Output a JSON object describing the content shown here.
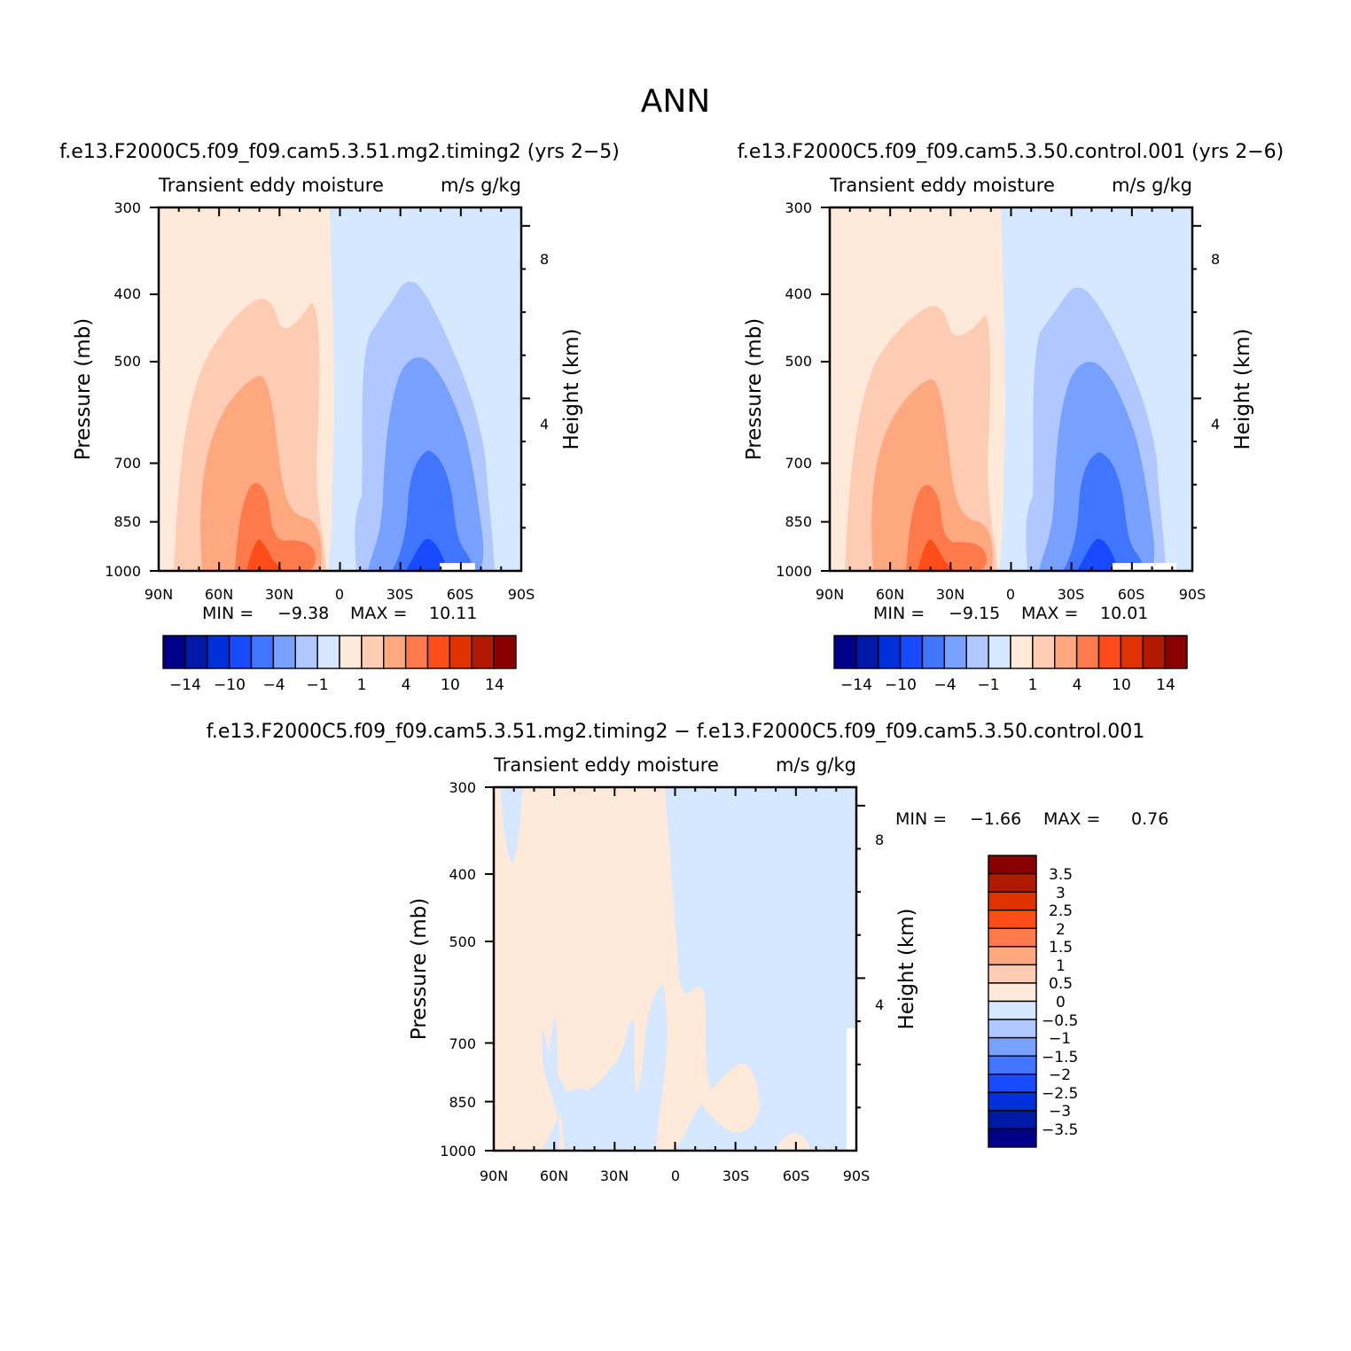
{
  "title": "ANN",
  "panels": [
    {
      "case_title": "f.e13.F2000C5.f09_f09.cam5.3.51.mg2.timing2 (yrs 2−5)",
      "plot_title": "Transient eddy moisture",
      "units": "m/s  g/kg",
      "ylabel": "Pressure (mb)",
      "ylabel_right": "Height (km)",
      "min_label": "MIN =",
      "min_value": "−9.38",
      "max_label": "MAX =",
      "max_value": "10.11"
    },
    {
      "case_title": "f.e13.F2000C5.f09_f09.cam5.3.50.control.001 (yrs 2−6)",
      "plot_title": "Transient eddy moisture",
      "units": "m/s  g/kg",
      "ylabel": "Pressure (mb)",
      "ylabel_right": "Height (km)",
      "min_label": "MIN =",
      "min_value": "−9.15",
      "max_label": "MAX =",
      "max_value": "10.01"
    },
    {
      "case_title": "f.e13.F2000C5.f09_f09.cam5.3.51.mg2.timing2 − f.e13.F2000C5.f09_f09.cam5.3.50.control.001",
      "plot_title": "Transient eddy moisture",
      "units": "m/s  g/kg",
      "ylabel": "Pressure (mb)",
      "ylabel_right": "Height (km)",
      "min_label": "MIN =",
      "min_value": "−1.66",
      "max_label": "MAX =",
      "max_value": "0.76"
    }
  ],
  "chart_data": [
    {
      "type": "heatmap",
      "title": "Transient eddy moisture",
      "units": "m/s  g/kg",
      "x_ticks": [
        "90N",
        "60N",
        "30N",
        "0",
        "30S",
        "60S",
        "90S"
      ],
      "y_ticks": [
        "300",
        "400",
        "500",
        "700",
        "850",
        "1000"
      ],
      "y_scale": "log",
      "ylim": [
        1000,
        300
      ],
      "height_ticks_km": [
        "8",
        "4"
      ],
      "colorbar_levels": [
        -14,
        -12,
        -10,
        -8,
        -4,
        -2,
        -1,
        0,
        1,
        2,
        4,
        8,
        10,
        12,
        14
      ],
      "colorbar_labels": [
        "−14",
        "−10",
        "−4",
        "−1",
        "1",
        "4",
        "10",
        "14"
      ],
      "min": -9.38,
      "max": 10.11
    },
    {
      "type": "heatmap",
      "title": "Transient eddy moisture",
      "units": "m/s  g/kg",
      "x_ticks": [
        "90N",
        "60N",
        "30N",
        "0",
        "30S",
        "60S",
        "90S"
      ],
      "y_ticks": [
        "300",
        "400",
        "500",
        "700",
        "850",
        "1000"
      ],
      "y_scale": "log",
      "ylim": [
        1000,
        300
      ],
      "height_ticks_km": [
        "8",
        "4"
      ],
      "colorbar_levels": [
        -14,
        -12,
        -10,
        -8,
        -4,
        -2,
        -1,
        0,
        1,
        2,
        4,
        8,
        10,
        12,
        14
      ],
      "colorbar_labels": [
        "−14",
        "−10",
        "−4",
        "−1",
        "1",
        "4",
        "10",
        "14"
      ],
      "min": -9.15,
      "max": 10.01
    },
    {
      "type": "heatmap",
      "title": "Transient eddy moisture",
      "units": "m/s  g/kg",
      "x_ticks": [
        "90N",
        "60N",
        "30N",
        "0",
        "30S",
        "60S",
        "90S"
      ],
      "y_ticks": [
        "300",
        "400",
        "500",
        "700",
        "850",
        "1000"
      ],
      "y_scale": "log",
      "ylim": [
        1000,
        300
      ],
      "height_ticks_km": [
        "8",
        "4"
      ],
      "colorbar_levels": [
        -3.5,
        -3,
        -2.5,
        -2,
        -1.5,
        -1,
        -0.5,
        0,
        0.5,
        1,
        1.5,
        2,
        2.5,
        3,
        3.5
      ],
      "colorbar_labels": [
        "3.5",
        "3",
        "2.5",
        "2",
        "1.5",
        "1",
        "0.5",
        "0",
        "−0.5",
        "−1",
        "−1.5",
        "−2",
        "−2.5",
        "−3",
        "−3.5"
      ],
      "min": -1.66,
      "max": 0.76
    }
  ],
  "colors": {
    "palette": [
      "#00008a",
      "#0019a6",
      "#0030d9",
      "#1a4aff",
      "#4075ff",
      "#78a0ff",
      "#b0c8ff",
      "#d6e8ff",
      "#ffe9d9",
      "#ffcbb3",
      "#ffa880",
      "#ff7a4a",
      "#ff4d1a",
      "#e03200",
      "#b21a00",
      "#8a0000"
    ]
  }
}
